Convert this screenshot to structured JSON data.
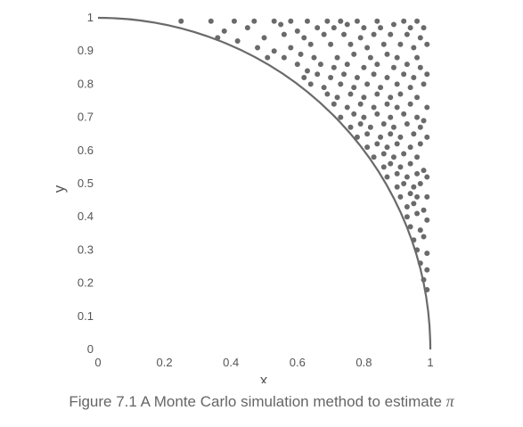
{
  "caption": {
    "text": "Figure 7.1 A Monte Carlo simulation method to estimate",
    "symbol": "π"
  },
  "colors": {
    "curve": "#6a6a6a",
    "points": "#6a6a6a",
    "text": "#555555"
  },
  "chart_data": {
    "type": "scatter",
    "xlabel": "x",
    "ylabel": "y",
    "xlim": [
      0,
      1
    ],
    "ylim": [
      0,
      1
    ],
    "grid": false,
    "xticks": [
      "0",
      "0.2",
      "0.4",
      "0.6",
      "0.8",
      "1"
    ],
    "yticks": [
      "0",
      "0.1",
      "0.2",
      "0.3",
      "0.4",
      "0.5",
      "0.6",
      "0.7",
      "0.8",
      "0.9",
      "1"
    ],
    "curve": {
      "shape": "quarter-circle",
      "radius": 1
    },
    "points": [
      [
        0.25,
        0.99
      ],
      [
        0.34,
        0.99
      ],
      [
        0.41,
        0.99
      ],
      [
        0.47,
        0.99
      ],
      [
        0.53,
        0.99
      ],
      [
        0.58,
        0.99
      ],
      [
        0.63,
        0.99
      ],
      [
        0.69,
        0.99
      ],
      [
        0.73,
        0.99
      ],
      [
        0.78,
        0.99
      ],
      [
        0.84,
        0.99
      ],
      [
        0.92,
        0.99
      ],
      [
        0.96,
        0.99
      ],
      [
        0.38,
        0.96
      ],
      [
        0.45,
        0.97
      ],
      [
        0.55,
        0.98
      ],
      [
        0.6,
        0.96
      ],
      [
        0.66,
        0.97
      ],
      [
        0.71,
        0.97
      ],
      [
        0.75,
        0.98
      ],
      [
        0.8,
        0.97
      ],
      [
        0.85,
        0.97
      ],
      [
        0.89,
        0.98
      ],
      [
        0.94,
        0.97
      ],
      [
        0.98,
        0.97
      ],
      [
        0.36,
        0.94
      ],
      [
        0.42,
        0.93
      ],
      [
        0.5,
        0.94
      ],
      [
        0.56,
        0.95
      ],
      [
        0.62,
        0.94
      ],
      [
        0.68,
        0.95
      ],
      [
        0.74,
        0.95
      ],
      [
        0.79,
        0.94
      ],
      [
        0.83,
        0.95
      ],
      [
        0.88,
        0.95
      ],
      [
        0.93,
        0.95
      ],
      [
        0.97,
        0.94
      ],
      [
        0.48,
        0.91
      ],
      [
        0.53,
        0.9
      ],
      [
        0.58,
        0.91
      ],
      [
        0.64,
        0.92
      ],
      [
        0.7,
        0.92
      ],
      [
        0.76,
        0.92
      ],
      [
        0.81,
        0.91
      ],
      [
        0.86,
        0.92
      ],
      [
        0.91,
        0.92
      ],
      [
        0.95,
        0.91
      ],
      [
        0.99,
        0.92
      ],
      [
        0.51,
        0.88
      ],
      [
        0.56,
        0.88
      ],
      [
        0.61,
        0.89
      ],
      [
        0.65,
        0.88
      ],
      [
        0.72,
        0.88
      ],
      [
        0.77,
        0.89
      ],
      [
        0.82,
        0.88
      ],
      [
        0.87,
        0.89
      ],
      [
        0.9,
        0.88
      ],
      [
        0.96,
        0.88
      ],
      [
        0.6,
        0.86
      ],
      [
        0.63,
        0.84
      ],
      [
        0.67,
        0.86
      ],
      [
        0.71,
        0.85
      ],
      [
        0.75,
        0.86
      ],
      [
        0.8,
        0.85
      ],
      [
        0.84,
        0.86
      ],
      [
        0.89,
        0.85
      ],
      [
        0.93,
        0.86
      ],
      [
        0.97,
        0.85
      ],
      [
        0.62,
        0.82
      ],
      [
        0.66,
        0.83
      ],
      [
        0.7,
        0.82
      ],
      [
        0.74,
        0.83
      ],
      [
        0.78,
        0.82
      ],
      [
        0.83,
        0.83
      ],
      [
        0.87,
        0.82
      ],
      [
        0.92,
        0.83
      ],
      [
        0.95,
        0.82
      ],
      [
        0.99,
        0.83
      ],
      [
        0.64,
        0.8
      ],
      [
        0.68,
        0.79
      ],
      [
        0.73,
        0.8
      ],
      [
        0.77,
        0.79
      ],
      [
        0.81,
        0.8
      ],
      [
        0.85,
        0.79
      ],
      [
        0.9,
        0.8
      ],
      [
        0.94,
        0.79
      ],
      [
        0.98,
        0.8
      ],
      [
        0.69,
        0.77
      ],
      [
        0.72,
        0.76
      ],
      [
        0.76,
        0.77
      ],
      [
        0.8,
        0.76
      ],
      [
        0.84,
        0.77
      ],
      [
        0.88,
        0.76
      ],
      [
        0.91,
        0.77
      ],
      [
        0.96,
        0.76
      ],
      [
        0.71,
        0.74
      ],
      [
        0.75,
        0.73
      ],
      [
        0.79,
        0.74
      ],
      [
        0.83,
        0.73
      ],
      [
        0.87,
        0.74
      ],
      [
        0.9,
        0.73
      ],
      [
        0.94,
        0.74
      ],
      [
        0.99,
        0.73
      ],
      [
        0.73,
        0.7
      ],
      [
        0.77,
        0.71
      ],
      [
        0.8,
        0.7
      ],
      [
        0.84,
        0.71
      ],
      [
        0.88,
        0.7
      ],
      [
        0.92,
        0.71
      ],
      [
        0.96,
        0.7
      ],
      [
        0.98,
        0.69
      ],
      [
        0.76,
        0.67
      ],
      [
        0.79,
        0.68
      ],
      [
        0.82,
        0.67
      ],
      [
        0.86,
        0.68
      ],
      [
        0.89,
        0.67
      ],
      [
        0.93,
        0.68
      ],
      [
        0.97,
        0.67
      ],
      [
        0.78,
        0.64
      ],
      [
        0.81,
        0.65
      ],
      [
        0.85,
        0.64
      ],
      [
        0.88,
        0.65
      ],
      [
        0.91,
        0.64
      ],
      [
        0.95,
        0.65
      ],
      [
        0.99,
        0.64
      ],
      [
        0.81,
        0.61
      ],
      [
        0.84,
        0.62
      ],
      [
        0.87,
        0.61
      ],
      [
        0.9,
        0.62
      ],
      [
        0.94,
        0.61
      ],
      [
        0.97,
        0.62
      ],
      [
        0.83,
        0.58
      ],
      [
        0.86,
        0.59
      ],
      [
        0.89,
        0.58
      ],
      [
        0.92,
        0.59
      ],
      [
        0.96,
        0.58
      ],
      [
        0.86,
        0.55
      ],
      [
        0.88,
        0.56
      ],
      [
        0.91,
        0.55
      ],
      [
        0.94,
        0.56
      ],
      [
        0.98,
        0.54
      ],
      [
        0.87,
        0.52
      ],
      [
        0.9,
        0.53
      ],
      [
        0.93,
        0.52
      ],
      [
        0.96,
        0.53
      ],
      [
        0.99,
        0.52
      ],
      [
        0.9,
        0.49
      ],
      [
        0.92,
        0.5
      ],
      [
        0.95,
        0.49
      ],
      [
        0.97,
        0.5
      ],
      [
        0.91,
        0.46
      ],
      [
        0.94,
        0.47
      ],
      [
        0.96,
        0.46
      ],
      [
        0.99,
        0.46
      ],
      [
        0.93,
        0.43
      ],
      [
        0.95,
        0.44
      ],
      [
        0.98,
        0.42
      ],
      [
        0.93,
        0.4
      ],
      [
        0.96,
        0.41
      ],
      [
        0.99,
        0.39
      ],
      [
        0.94,
        0.37
      ],
      [
        0.97,
        0.36
      ],
      [
        0.95,
        0.33
      ],
      [
        0.98,
        0.34
      ],
      [
        0.96,
        0.3
      ],
      [
        0.99,
        0.29
      ],
      [
        0.97,
        0.26
      ],
      [
        0.99,
        0.24
      ],
      [
        0.98,
        0.21
      ],
      [
        0.99,
        0.18
      ]
    ]
  }
}
